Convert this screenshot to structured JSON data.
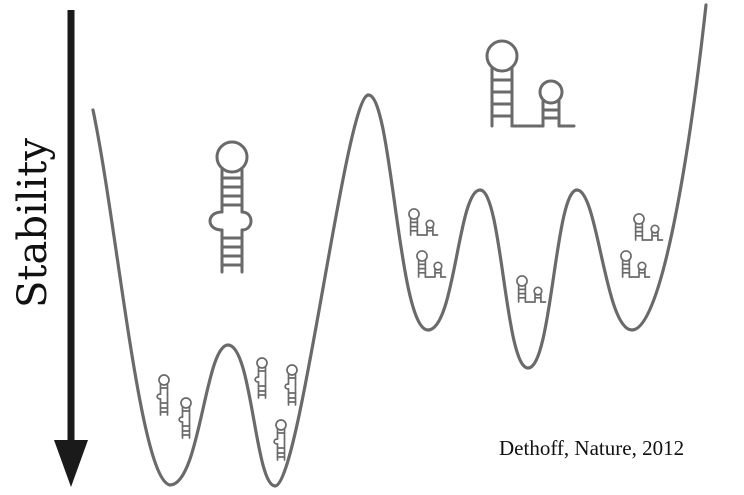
{
  "axis": {
    "label": "Stability"
  },
  "citation": {
    "text": "Dethoff, Nature, 2012"
  },
  "colors": {
    "curve": "#6a6a6a",
    "arrow": "#1a1a1a",
    "text": "#111111",
    "background": "#ffffff"
  },
  "structures": {
    "large_hairpin": "single-hairpin-bulged-icon",
    "large_two_hairpin": "double-hairpin-icon",
    "small_single": "small-hairpin-icon",
    "small_double": "small-double-hairpin-icon"
  }
}
